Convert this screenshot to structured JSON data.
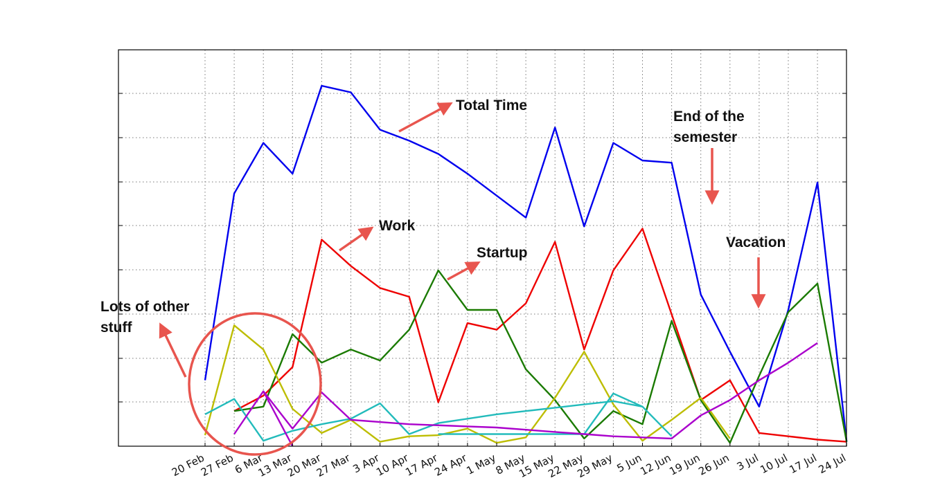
{
  "chart_data": {
    "type": "line",
    "title": "",
    "xlabel": "",
    "ylabel": "",
    "grid": true,
    "y_tick_labels_shown": false,
    "ylim": [
      0,
      16.4
    ],
    "categories": [
      "20 Feb",
      "27 Feb",
      "6 Mar",
      "13 Mar",
      "20 Mar",
      "27 Mar",
      "3 Apr",
      "10 Apr",
      "17 Apr",
      "24 Apr",
      "1 May",
      "8 May",
      "15 May",
      "22 May",
      "29 May",
      "5 Jun",
      "12 Jun",
      "19 Jun",
      "26 Jun",
      "3 Jul",
      "10 Jul",
      "17 Jul",
      "24 Jul"
    ],
    "series": [
      {
        "key": "total",
        "color": "#0000ee",
        "values": [
          3.0,
          11.5,
          13.8,
          12.4,
          16.4,
          16.1,
          14.4,
          13.9,
          13.3,
          12.4,
          11.4,
          10.4,
          14.5,
          10.0,
          13.8,
          13.0,
          12.9,
          6.9,
          4.3,
          1.8,
          6.2,
          12.0,
          0.2
        ]
      },
      {
        "key": "work",
        "color": "#ee0000",
        "values": [
          null,
          1.6,
          2.3,
          3.6,
          9.4,
          8.2,
          7.2,
          6.8,
          2.0,
          5.6,
          5.3,
          6.5,
          9.3,
          4.4,
          8.0,
          9.9,
          6.0,
          2.1,
          3.0,
          0.6,
          0.45,
          0.3,
          0.2
        ]
      },
      {
        "key": "startup",
        "color": "#1a7a00",
        "values": [
          null,
          1.6,
          1.8,
          5.1,
          3.8,
          4.4,
          3.9,
          5.3,
          8.0,
          6.2,
          6.2,
          3.5,
          2.1,
          0.35,
          1.6,
          1.0,
          5.7,
          2.1,
          0.15,
          3.2,
          6.1,
          7.4,
          0.2
        ]
      },
      {
        "key": "yellow",
        "color": "#bdbd00",
        "values": [
          0.5,
          5.5,
          4.4,
          1.7,
          0.6,
          1.2,
          0.2,
          0.45,
          0.5,
          0.8,
          0.15,
          0.4,
          2.2,
          4.3,
          1.9,
          0.25,
          1.2,
          2.2,
          0.35,
          null,
          null,
          null,
          null
        ]
      },
      {
        "key": "cyan",
        "color": "#22bbbb",
        "values": [
          1.45,
          2.15,
          0.25,
          0.7,
          1.0,
          1.25,
          1.95,
          0.55,
          1.05,
          1.25,
          1.45,
          1.6,
          1.75,
          1.9,
          2.05,
          1.8,
          0.45,
          null,
          null,
          null,
          null,
          null,
          null
        ]
      },
      {
        "key": "cyan-low",
        "color": "#22bbbb",
        "values": [
          null,
          null,
          null,
          null,
          null,
          null,
          null,
          null,
          0.55,
          0.55,
          0.55,
          0.55,
          0.55,
          0.55,
          2.4,
          1.8,
          null,
          null,
          null,
          null,
          null,
          null,
          null
        ]
      },
      {
        "key": "purple",
        "color": "#aa00cc",
        "values": [
          null,
          0.55,
          2.5,
          0.8,
          2.45,
          1.2,
          1.1,
          1.0,
          0.95,
          0.9,
          0.85,
          0.75,
          0.65,
          0.55,
          0.45,
          0.4,
          0.35,
          1.4,
          2.1,
          3.0,
          3.8,
          4.7,
          null
        ]
      },
      {
        "key": "purple-drop",
        "color": "#aa00cc",
        "values": [
          null,
          null,
          2.5,
          0.0,
          null,
          null,
          null,
          null,
          null,
          null,
          null,
          null,
          null,
          null,
          null,
          null,
          null,
          null,
          null,
          null,
          null,
          null,
          null
        ]
      }
    ],
    "annotations": [
      {
        "id": "total-time",
        "text": "Total Time"
      },
      {
        "id": "end-semester",
        "text": "End of the\nsemester"
      },
      {
        "id": "work",
        "text": "Work"
      },
      {
        "id": "startup",
        "text": "Startup"
      },
      {
        "id": "vacation",
        "text": "Vacation"
      },
      {
        "id": "other-stuff",
        "text": "Lots of other\nstuff"
      }
    ],
    "annotation_color": "#e8554e"
  }
}
